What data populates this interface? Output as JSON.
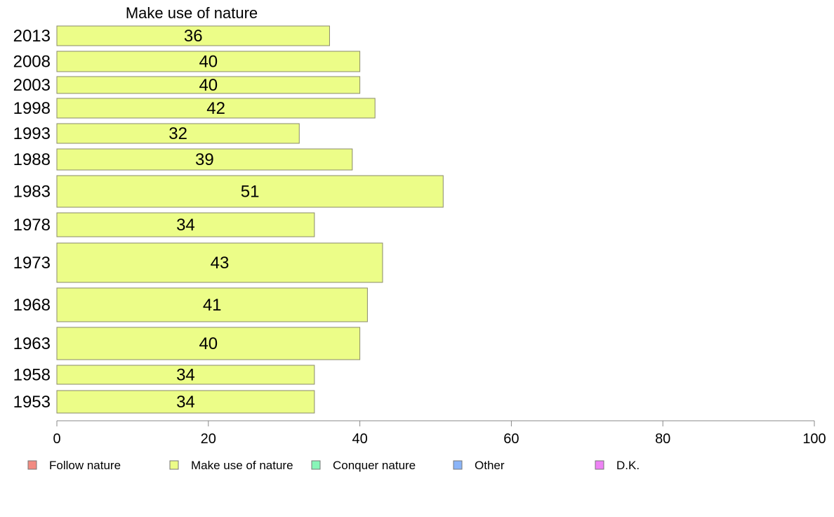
{
  "chart_data": {
    "type": "bar",
    "orientation": "horizontal",
    "title": "Make use of nature",
    "categories": [
      "2013",
      "2008",
      "2003",
      "1998",
      "1993",
      "1988",
      "1983",
      "1978",
      "1973",
      "1968",
      "1963",
      "1958",
      "1953"
    ],
    "series": [
      {
        "name": "Make use of nature",
        "values": [
          36,
          40,
          40,
          42,
          32,
          39,
          51,
          34,
          43,
          41,
          40,
          34,
          34
        ]
      }
    ],
    "xlim": [
      0,
      100
    ],
    "xticks": [
      0,
      20,
      40,
      60,
      80,
      100
    ],
    "grid": false,
    "legend_position": "bottom",
    "legend": [
      {
        "label": "Follow nature",
        "color": "#f28b82"
      },
      {
        "label": "Make use of nature",
        "color": "#ecfd88"
      },
      {
        "label": "Conquer nature",
        "color": "#88f5b8"
      },
      {
        "label": "Other",
        "color": "#8ab4f8"
      },
      {
        "label": "D.K.",
        "color": "#ee82f5"
      }
    ],
    "bar_color": "#ecfd88"
  }
}
